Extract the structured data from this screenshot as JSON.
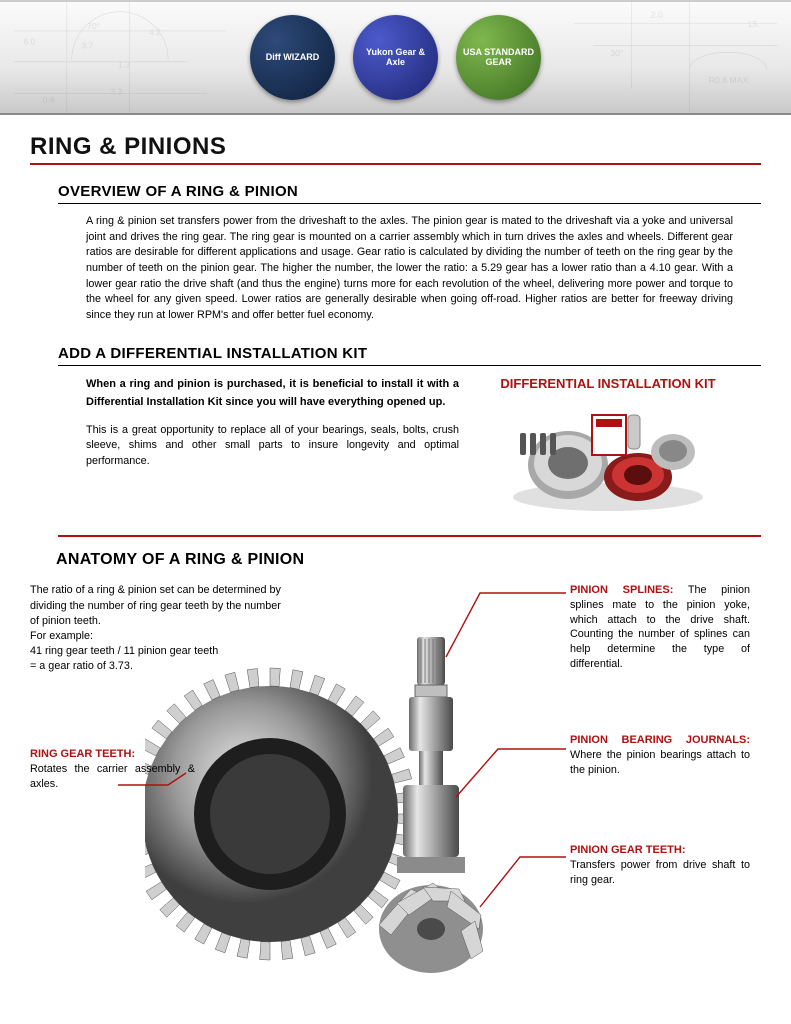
{
  "colors": {
    "red": "#b01010",
    "black": "#000000",
    "steel_light": "#d8d8d8",
    "steel_mid": "#9a9a9a",
    "steel_dark": "#4f4f4f"
  },
  "header": {
    "logos": [
      {
        "name": "diff-wizard-logo",
        "label": "Diff WIZARD"
      },
      {
        "name": "yukon-logo",
        "label": "Yukon Gear & Axle"
      },
      {
        "name": "usa-standard-logo",
        "label": "USA STANDARD GEAR"
      }
    ],
    "bg_labels": [
      "6.0",
      "70°",
      "3.7",
      "4.2",
      "1.3",
      "0.6",
      "3.3",
      "30°",
      "13.",
      "R0.8 MAX"
    ]
  },
  "page_title": "RING & PINIONS",
  "overview": {
    "title": "OVERVIEW OF A RING & PINION",
    "text": "A ring & pinion set transfers power from the driveshaft to the axles. The pinion gear is mated to the driveshaft via a yoke and universal joint and drives the ring gear. The ring gear is mounted on a carrier assembly which in turn drives the axles and wheels. Different gear ratios are desirable for different applications and usage. Gear ratio is calculated by dividing the number of teeth on the ring gear by the number of teeth on the pinion gear. The higher the number, the lower the ratio: a 5.29 gear has a lower ratio than a 4.10 gear. With a lower gear ratio the drive shaft (and thus the engine) turns more for each revolution of the wheel, delivering more power and torque to the wheel for any given speed. Lower ratios are generally desirable when going off-road. Higher ratios are better for freeway driving since they run at lower RPM's and offer better fuel economy."
  },
  "kit": {
    "title": "ADD A DIFFERENTIAL INSTALLATION KIT",
    "bold_text": "When a ring and pinion is purchased, it is beneficial to install it with a Differential Installation Kit since you will have everything opened up.",
    "para_text": "This is a great opportunity to replace all of your bearings, seals, bolts, crush sleeve, shims and other small parts to insure longevity and optimal performance.",
    "image_title": "DIFFERENTIAL INSTALLATION KIT"
  },
  "anatomy": {
    "title": "ANATOMY OF A RING & PINION",
    "intro": "The ratio of a ring & pinion set can be determined by dividing the number of ring gear teeth by the number of pinion teeth.\nFor example:\n41 ring gear teeth / 11 pinion gear teeth\n= a gear ratio of 3.73.",
    "callouts": {
      "ring_gear_teeth": {
        "label": "RING GEAR TEETH:",
        "text": "Rotates the carrier assembly & axles."
      },
      "pinion_splines": {
        "label": "PINION SPLINES:",
        "text": "The pinion splines mate to the pinion yoke, which attach to the drive shaft. Counting the number of splines can help determine the type of differential."
      },
      "pinion_bearing_journals": {
        "label": "PINION BEARING JOURNALS:",
        "text": "Where the pinion bearings attach to the pinion."
      },
      "pinion_gear_teeth": {
        "label": "PINION GEAR TEETH:",
        "text": "Transfers power from drive shaft to ring gear."
      }
    }
  }
}
